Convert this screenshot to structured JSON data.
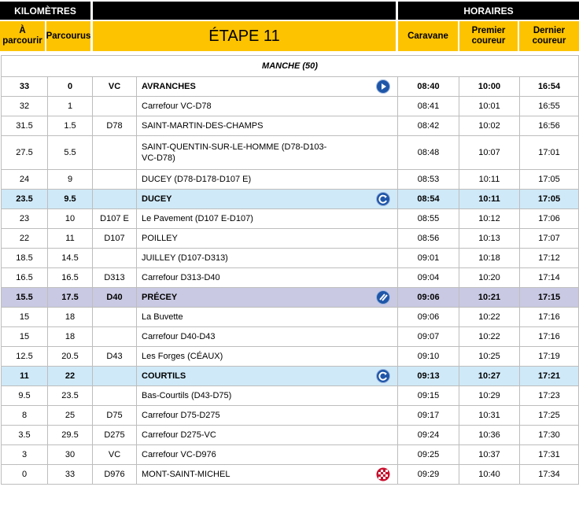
{
  "header": {
    "km": "KILOMÈTRES",
    "horaires": "HORAIRES",
    "a_parcourir": "À parcourir",
    "parcourus": "Parcourus",
    "etape": "ÉTAPE 11",
    "caravane": "Caravane",
    "premier": "Premier coureur",
    "dernier": "Dernier coureur"
  },
  "section": "MANCHE (50)",
  "rows": [
    [
      "33",
      "0",
      "VC",
      "AVRANCHES",
      "08:40",
      "10:00",
      "16:54"
    ],
    [
      "32",
      "1",
      null,
      "Carrefour VC-D78",
      "08:41",
      "10:01",
      "16:55"
    ],
    [
      "31.5",
      "1.5",
      "D78",
      "SAINT-MARTIN-DES-CHAMPS",
      "08:42",
      "10:02",
      "16:56"
    ],
    [
      "27.5",
      "5.5",
      null,
      "SAINT-QUENTIN-SUR-LE-HOMME (D78-D103-VC-D78)",
      "08:48",
      "10:07",
      "17:01"
    ],
    [
      "24",
      "9",
      null,
      "DUCEY (D78-D178-D107 E)",
      "08:53",
      "10:11",
      "17:05"
    ],
    [
      "23.5",
      "9.5",
      null,
      "DUCEY",
      "08:54",
      "10:11",
      "17:05"
    ],
    [
      "23",
      "10",
      "D107 E",
      "Le Pavement (D107 E-D107)",
      "08:55",
      "10:12",
      "17:06"
    ],
    [
      "22",
      "11",
      "D107",
      "POILLEY",
      "08:56",
      "10:13",
      "17:07"
    ],
    [
      "18.5",
      "14.5",
      null,
      "JUILLEY (D107-D313)",
      "09:01",
      "10:18",
      "17:12"
    ],
    [
      "16.5",
      "16.5",
      "D313",
      "Carrefour D313-D40",
      "09:04",
      "10:20",
      "17:14"
    ],
    [
      "15.5",
      "17.5",
      "D40",
      "PRÉCEY",
      "09:06",
      "10:21",
      "17:15"
    ],
    [
      "15",
      "18",
      null,
      "La Buvette",
      "09:06",
      "10:22",
      "17:16"
    ],
    [
      "15",
      "18",
      null,
      "Carrefour D40-D43",
      "09:07",
      "10:22",
      "17:16"
    ],
    [
      "12.5",
      "20.5",
      "D43",
      "Les Forges (CÉAUX)",
      "09:10",
      "10:25",
      "17:19"
    ],
    [
      "11",
      "22",
      null,
      "COURTILS",
      "09:13",
      "10:27",
      "17:21"
    ],
    [
      "9.5",
      "23.5",
      null,
      "Bas-Courtils (D43-D75)",
      "09:15",
      "10:29",
      "17:23"
    ],
    [
      "8",
      "25",
      "D75",
      "Carrefour D75-D275",
      "09:17",
      "10:31",
      "17:25"
    ],
    [
      "3.5",
      "29.5",
      "D275",
      "Carrefour D275-VC",
      "09:24",
      "10:36",
      "17:30"
    ],
    [
      "3",
      "30",
      "VC",
      "Carrefour VC-D976",
      "09:25",
      "10:37",
      "17:31"
    ],
    [
      "0",
      "33",
      "D976",
      "MONT-SAINT-MICHEL",
      "09:29",
      "10:40",
      "17:34"
    ]
  ]
}
